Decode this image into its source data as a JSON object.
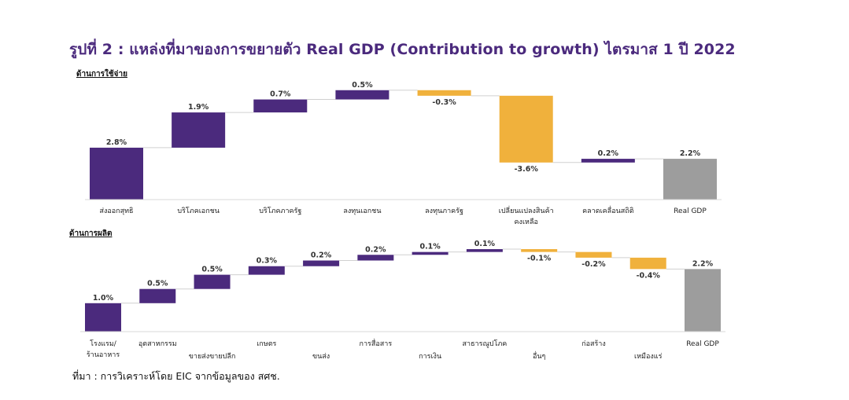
{
  "title": "รูปที่ 2 : แหล่งที่มาของการขยายตัว Real GDP (Contribution to growth) ไตรมาส 1 ปี 2022",
  "source": "ที่มา : การวิเคราะห์โดย EIC จากข้อมูลของ สศช.",
  "colors": {
    "increase": "#4b2a7d",
    "decrease": "#f0b13c",
    "total": "#9d9d9d",
    "connector": "#d0d0d0"
  },
  "chart_data": [
    {
      "type": "waterfall",
      "title": "ด้านการใช้จ่าย",
      "categories": [
        "ส่งออกสุทธิ",
        "บริโภคเอกชน",
        "บริโภคภาครัฐ",
        "ลงทุนเอกชน",
        "ลงทุนภาครัฐ",
        "เปลี่ยนแปลงสินค้าคงเหลือ",
        "คลาดเคลื่อนสถิติ",
        "Real GDP"
      ],
      "category_lines": [
        [
          "ส่งออกสุทธิ"
        ],
        [
          "บริโภคเอกชน"
        ],
        [
          "บริโภคภาครัฐ"
        ],
        [
          "ลงทุนเอกชน"
        ],
        [
          "ลงทุนภาครัฐ"
        ],
        [
          "เปลี่ยนแปลงสินค้า",
          "คงเหลือ"
        ],
        [
          "คลาดเคลื่อนสถิติ"
        ],
        [
          "Real GDP"
        ]
      ],
      "values": [
        2.8,
        1.9,
        0.7,
        0.5,
        -0.3,
        -3.6,
        0.2,
        2.2
      ],
      "labels": [
        "2.8%",
        "1.9%",
        "0.7%",
        "0.5%",
        "-0.3%",
        "-3.6%",
        "0.2%",
        "2.2%"
      ],
      "total_index": 7
    },
    {
      "type": "waterfall",
      "title": "ด้านการผลิต",
      "categories": [
        "โรงแรม/ร้านอาหาร",
        "อุตสาหกรรม",
        "ขายส่งขายปลีก",
        "เกษตร",
        "ขนส่ง",
        "การสื่อสาร",
        "การเงิน",
        "สาธารณูปโภค",
        "อื่นๆ",
        "ก่อสร้าง",
        "เหมืองแร่",
        "Real GDP"
      ],
      "category_lines": [
        [
          "โรงแรม/",
          "ร้านอาหาร"
        ],
        [
          "อุตสาหกรรม"
        ],
        [
          "ขายส่งขายปลีก"
        ],
        [
          "เกษตร"
        ],
        [
          "ขนส่ง"
        ],
        [
          "การสื่อสาร"
        ],
        [
          "การเงิน"
        ],
        [
          "สาธารณูปโภค"
        ],
        [
          "อื่นๆ"
        ],
        [
          "ก่อสร้าง"
        ],
        [
          "เหมืองแร่"
        ],
        [
          "Real GDP"
        ]
      ],
      "label_rows": [
        0,
        0,
        1,
        0,
        1,
        0,
        1,
        0,
        1,
        0,
        1,
        0
      ],
      "values": [
        1.0,
        0.5,
        0.5,
        0.3,
        0.2,
        0.2,
        0.1,
        0.1,
        -0.1,
        -0.2,
        -0.4,
        2.2
      ],
      "labels": [
        "1.0%",
        "0.5%",
        "0.5%",
        "0.3%",
        "0.2%",
        "0.2%",
        "0.1%",
        "0.1%",
        "-0.1%",
        "-0.2%",
        "-0.4%",
        "2.2%"
      ],
      "total_index": 11
    }
  ]
}
